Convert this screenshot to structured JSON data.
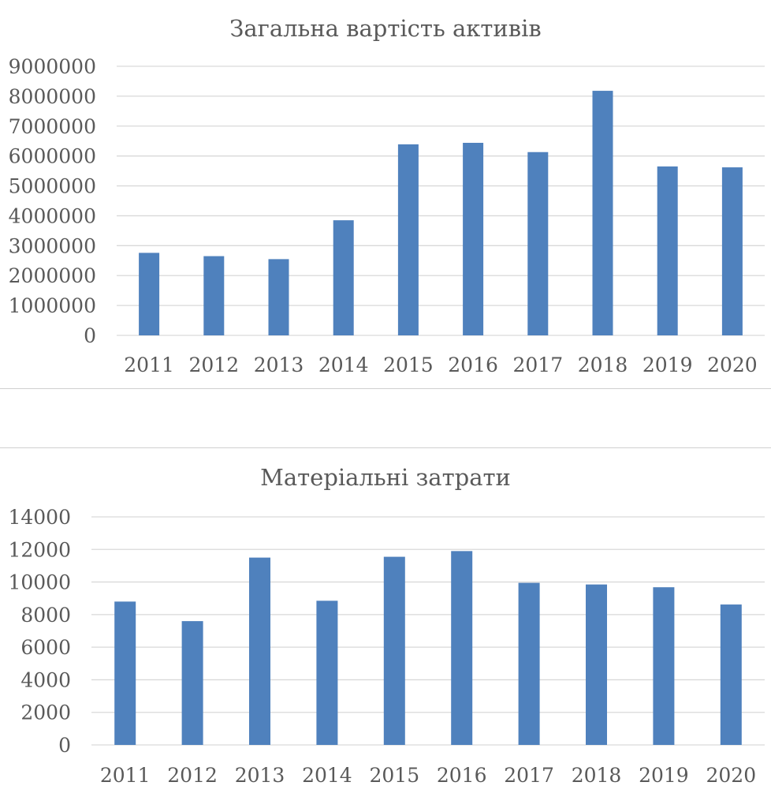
{
  "chart_data": [
    {
      "type": "bar",
      "title": "Загальна вартість активів",
      "xlabel": "",
      "ylabel": "",
      "categories": [
        "2011",
        "2012",
        "2013",
        "2014",
        "2015",
        "2016",
        "2017",
        "2018",
        "2019",
        "2020"
      ],
      "values": [
        2760000,
        2650000,
        2550000,
        3850000,
        6390000,
        6440000,
        6130000,
        8180000,
        5650000,
        5620000
      ],
      "ylim": [
        0,
        9000000
      ],
      "yticks": [
        0,
        1000000,
        2000000,
        3000000,
        4000000,
        5000000,
        6000000,
        7000000,
        8000000,
        9000000
      ],
      "ytick_labels": [
        "0",
        "1000000",
        "2000000",
        "3000000",
        "4000000",
        "5000000",
        "6000000",
        "7000000",
        "8000000",
        "9000000"
      ],
      "grid": true,
      "legend": "none",
      "color": "#4f81bd"
    },
    {
      "type": "bar",
      "title": "Матеріальні затрати",
      "xlabel": "",
      "ylabel": "",
      "categories": [
        "2011",
        "2012",
        "2013",
        "2014",
        "2015",
        "2016",
        "2017",
        "2018",
        "2019",
        "2020"
      ],
      "values": [
        8800,
        7600,
        11500,
        8850,
        11550,
        11900,
        9950,
        9850,
        9680,
        8620
      ],
      "ylim": [
        0,
        14000
      ],
      "yticks": [
        0,
        2000,
        4000,
        6000,
        8000,
        10000,
        12000,
        14000
      ],
      "ytick_labels": [
        "0",
        "2000",
        "4000",
        "6000",
        "8000",
        "10000",
        "12000",
        "14000"
      ],
      "grid": true,
      "legend": "none",
      "color": "#4f81bd"
    }
  ]
}
